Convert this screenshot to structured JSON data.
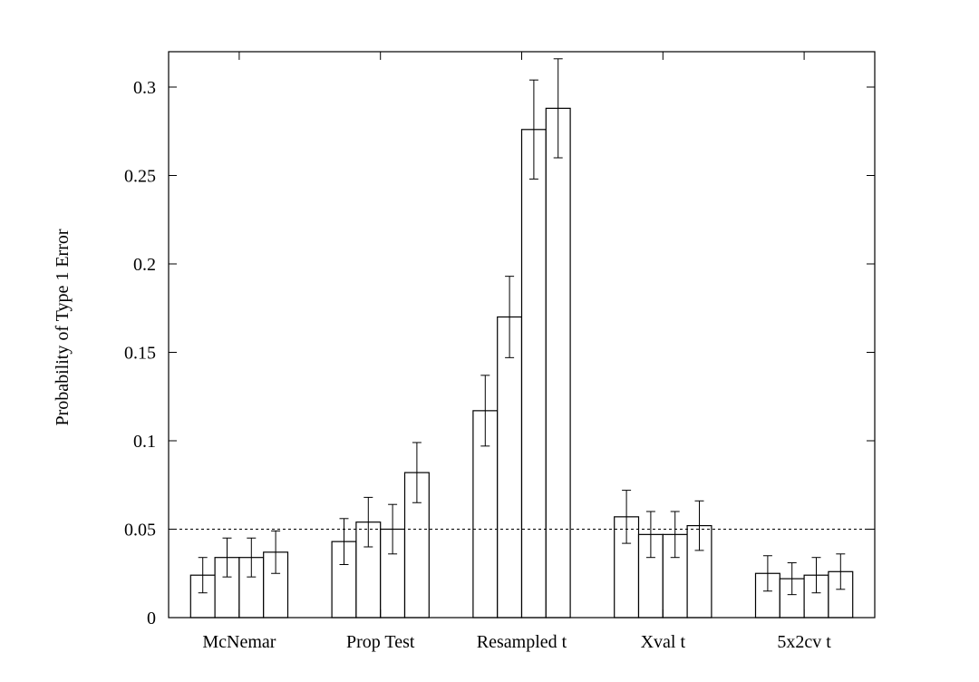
{
  "chart_data": {
    "type": "bar",
    "title": "",
    "xlabel": "",
    "ylabel": "Probability of Type 1 Error",
    "ylim": [
      0,
      0.32
    ],
    "yticks": [
      0,
      0.05,
      0.1,
      0.15,
      0.2,
      0.25,
      0.3
    ],
    "ytick_labels": [
      "0",
      "0.05",
      "0.1",
      "0.15",
      "0.2",
      "0.25",
      "0.3"
    ],
    "grid": false,
    "reference_line": {
      "y": 0.05,
      "style": "dotted"
    },
    "categories": [
      "McNemar",
      "Prop Test",
      "Resampled t",
      "Xval t",
      "5x2cv t"
    ],
    "groups": [
      {
        "category": "McNemar",
        "values": [
          0.024,
          0.034,
          0.034,
          0.037
        ],
        "errors": [
          0.01,
          0.011,
          0.011,
          0.012
        ]
      },
      {
        "category": "Prop Test",
        "values": [
          0.043,
          0.054,
          0.05,
          0.082
        ],
        "errors": [
          0.013,
          0.014,
          0.014,
          0.017
        ]
      },
      {
        "category": "Resampled t",
        "values": [
          0.117,
          0.17,
          0.276,
          0.288
        ],
        "errors": [
          0.02,
          0.023,
          0.028,
          0.028
        ]
      },
      {
        "category": "Xval t",
        "values": [
          0.057,
          0.047,
          0.047,
          0.052
        ],
        "errors": [
          0.015,
          0.013,
          0.013,
          0.014
        ]
      },
      {
        "category": "5x2cv t",
        "values": [
          0.025,
          0.022,
          0.024,
          0.026
        ],
        "errors": [
          0.01,
          0.009,
          0.01,
          0.01
        ]
      }
    ],
    "colors": {
      "bar_fill": "#ffffff",
      "stroke": "#000000"
    }
  }
}
